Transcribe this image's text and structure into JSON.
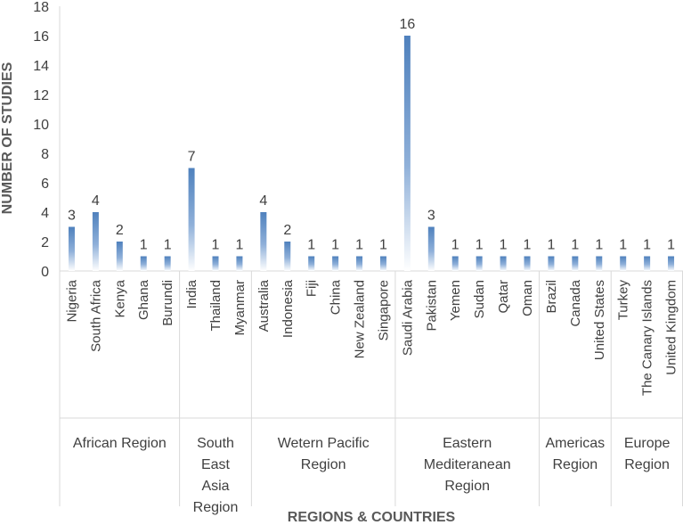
{
  "chart_data": {
    "type": "bar",
    "title": "",
    "xlabel": "REGIONS & COUNTRIES",
    "ylabel": "NUMBER OF STUDIES",
    "ylim": [
      0,
      18
    ],
    "yticks": [
      0,
      2,
      4,
      6,
      8,
      10,
      12,
      14,
      16,
      18
    ],
    "grid": false,
    "legend": "none",
    "bar_color": "#4f81bd",
    "groups": [
      {
        "name": "African Region",
        "categories": [
          "Nigeria",
          "South Africa",
          "Kenya",
          "Ghana",
          "Burundi"
        ],
        "values": [
          3,
          4,
          2,
          1,
          1
        ]
      },
      {
        "name": "South East Asia Region",
        "categories": [
          "India",
          "Thailand",
          "Myanmar"
        ],
        "values": [
          7,
          1,
          1
        ]
      },
      {
        "name": "Wetern Pacific Region",
        "categories": [
          "Australia",
          "Indonesia",
          "Fiji",
          "China",
          "New Zealand",
          "Singapore"
        ],
        "values": [
          4,
          2,
          1,
          1,
          1,
          1
        ]
      },
      {
        "name": "Eastern Mediteranean Region",
        "categories": [
          "Saudi Arabia",
          "Pakistan",
          "Yemen",
          "Sudan",
          "Qatar",
          "Oman"
        ],
        "values": [
          16,
          3,
          1,
          1,
          1,
          1
        ]
      },
      {
        "name": "Americas Region",
        "categories": [
          "Brazil",
          "Canada",
          "United States"
        ],
        "values": [
          1,
          1,
          1
        ]
      },
      {
        "name": "Europe Region",
        "categories": [
          "Turkey",
          "The Canary Islands",
          "United Kingdom"
        ],
        "values": [
          1,
          1,
          1
        ]
      }
    ]
  }
}
